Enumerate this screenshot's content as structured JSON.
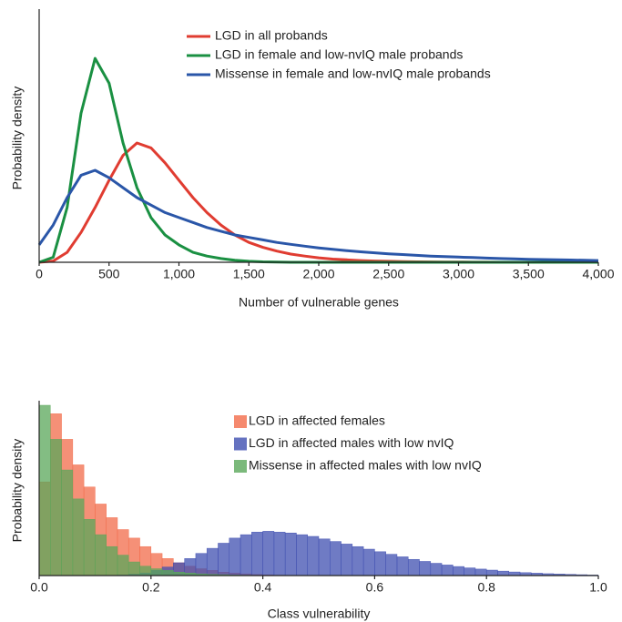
{
  "chart_data": [
    {
      "type": "line",
      "xlabel": "Number of vulnerable genes",
      "ylabel": "Probability density",
      "xlim": [
        0,
        4000
      ],
      "ylim": [
        0,
        100
      ],
      "xticks": [
        0,
        500,
        {
          "value": 1000,
          "label": "1,000"
        },
        {
          "value": 1500,
          "label": "1,500"
        },
        {
          "value": 2000,
          "label": "2,000"
        },
        {
          "value": 2500,
          "label": "2,500"
        },
        {
          "value": 3000,
          "label": "3,000"
        },
        {
          "value": 3500,
          "label": "3,500"
        },
        {
          "value": 4000,
          "label": "4,000"
        }
      ],
      "x": [
        0,
        100,
        200,
        300,
        400,
        500,
        600,
        700,
        800,
        900,
        1000,
        1100,
        1200,
        1300,
        1400,
        1500,
        1600,
        1700,
        1800,
        1900,
        2000,
        2100,
        2200,
        2300,
        2400,
        2500,
        2600,
        2700,
        2800,
        2900,
        3000,
        3100,
        3200,
        3300,
        3400,
        3500,
        3600,
        3700,
        3800,
        3900,
        4000
      ],
      "series": [
        {
          "name": "LGD in all probands",
          "color": "#e03c31",
          "values": [
            0,
            0.5,
            4,
            12,
            22,
            33,
            43,
            48,
            46,
            40,
            33,
            26,
            20,
            15,
            11,
            8,
            6,
            4.5,
            3.3,
            2.5,
            1.8,
            1.3,
            1,
            0.7,
            0.5,
            0.4,
            0.3,
            0.2,
            0.15,
            0.1,
            0.1,
            0.05,
            0.05,
            0,
            0,
            0,
            0,
            0,
            0,
            0,
            0
          ]
        },
        {
          "name": "LGD in female and low-nvIQ male probands",
          "color": "#1a9042",
          "values": [
            0,
            2,
            22,
            60,
            82,
            72,
            48,
            30,
            18,
            11,
            7,
            4,
            2.5,
            1.5,
            0.8,
            0.4,
            0.2,
            0.1,
            0,
            0,
            0,
            0,
            0,
            0,
            0,
            0,
            0,
            0,
            0,
            0,
            0,
            0,
            0,
            0,
            0,
            0,
            0,
            0,
            0,
            0,
            0
          ]
        },
        {
          "name": "Missense in female and low-nvIQ male probands",
          "color": "#2a56a8",
          "values": [
            7,
            15,
            26,
            35,
            37,
            34,
            30,
            26,
            23,
            20,
            18,
            16,
            14,
            12.5,
            11,
            10,
            9,
            8,
            7.2,
            6.5,
            5.8,
            5.2,
            4.7,
            4.2,
            3.8,
            3.4,
            3.1,
            2.8,
            2.5,
            2.3,
            2.1,
            1.9,
            1.7,
            1.5,
            1.4,
            1.2,
            1.1,
            1,
            0.9,
            0.8,
            0.7
          ]
        }
      ]
    },
    {
      "type": "histogram",
      "xlabel": "Class vulnerability",
      "ylabel": "Probability density",
      "xlim": [
        0,
        1
      ],
      "ylim": [
        0,
        100
      ],
      "xticks": [
        {
          "value": 0,
          "label": "0.0"
        },
        0.2,
        0.4,
        0.6,
        0.8,
        {
          "value": 1,
          "label": "1.0"
        }
      ],
      "bins": [
        0,
        0.02,
        0.04,
        0.06,
        0.08,
        0.1,
        0.12,
        0.14,
        0.16,
        0.18,
        0.2,
        0.22,
        0.24,
        0.26,
        0.28,
        0.3,
        0.32,
        0.34,
        0.36,
        0.38,
        0.4,
        0.42,
        0.44,
        0.46,
        0.48,
        0.5,
        0.52,
        0.54,
        0.56,
        0.58,
        0.6,
        0.62,
        0.64,
        0.66,
        0.68,
        0.7,
        0.72,
        0.74,
        0.76,
        0.78,
        0.8,
        0.82,
        0.84,
        0.86,
        0.88,
        0.9,
        0.92,
        0.94,
        0.96,
        0.98,
        1
      ],
      "series": [
        {
          "name": "LGD in affected females",
          "color": "#f26b4a",
          "values": [
            55,
            95,
            80,
            65,
            52,
            42,
            34,
            27,
            22,
            17,
            13,
            10,
            7.5,
            5.5,
            4,
            3,
            2,
            1.5,
            1,
            0.6,
            0.4,
            0.2,
            0.1,
            0,
            0,
            0,
            0,
            0,
            0,
            0,
            0,
            0,
            0,
            0,
            0,
            0,
            0,
            0,
            0,
            0,
            0,
            0,
            0,
            0,
            0,
            0,
            0,
            0,
            0,
            0
          ]
        },
        {
          "name": "LGD in affected males with low nvIQ",
          "color": "#3f4fb0",
          "values": [
            0,
            0,
            0,
            0,
            0,
            0,
            0,
            0.3,
            0.8,
            1.5,
            3,
            5,
            7.5,
            10,
            13,
            16,
            19,
            22,
            24,
            25.5,
            26,
            25.5,
            25,
            24,
            23,
            21.5,
            20,
            18.5,
            17,
            15.5,
            14,
            12.5,
            11,
            9.5,
            8.3,
            7.2,
            6.2,
            5.3,
            4.5,
            3.8,
            3.2,
            2.6,
            2.1,
            1.7,
            1.4,
            1.1,
            0.9,
            0.7,
            0.5,
            0.3
          ]
        },
        {
          "name": "Missense in affected males with low nvIQ",
          "color": "#5aa75a",
          "values": [
            100,
            80,
            62,
            45,
            33,
            24,
            17,
            12,
            8,
            5.5,
            4,
            3,
            2,
            1.5,
            1,
            0.7,
            0.5,
            0.3,
            0.2,
            0.1,
            0,
            0,
            0,
            0,
            0,
            0,
            0,
            0,
            0,
            0,
            0,
            0,
            0,
            0,
            0,
            0,
            0,
            0,
            0,
            0,
            0,
            0,
            0,
            0,
            0,
            0,
            0,
            0,
            0,
            0
          ]
        }
      ]
    }
  ]
}
